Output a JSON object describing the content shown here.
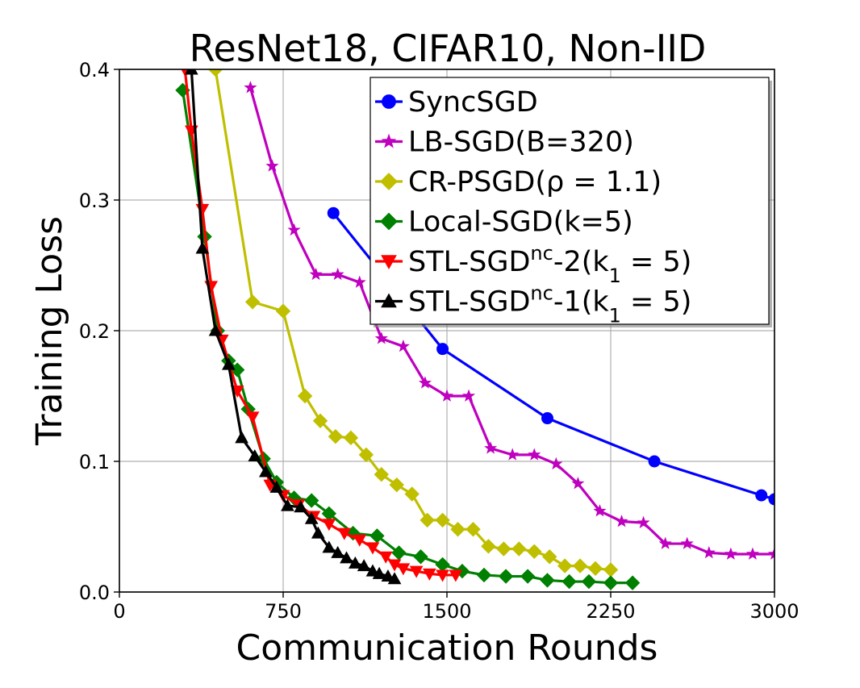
{
  "chart_data": {
    "type": "line",
    "title": "ResNet18, CIFAR10, Non-IID",
    "xlabel": "Communication Rounds",
    "ylabel": "Training Loss",
    "xlim": [
      0,
      3000
    ],
    "ylim": [
      0,
      0.4
    ],
    "x_ticks": [
      0,
      750,
      1500,
      2250,
      3000
    ],
    "y_ticks": [
      0.0,
      0.1,
      0.2,
      0.3,
      0.4
    ],
    "x_tick_labels": [
      "0",
      "750",
      "1500",
      "2250",
      "3000"
    ],
    "y_tick_labels": [
      "0.0",
      "0.1",
      "0.2",
      "0.3",
      "0.4"
    ],
    "grid": true,
    "legend_position": "top-right",
    "series": [
      {
        "name": "SyncSGD",
        "color": "#0000ff",
        "marker": "circle",
        "x": [
          980,
          1480,
          1960,
          2450,
          2940,
          3000
        ],
        "y": [
          0.29,
          0.186,
          0.133,
          0.1,
          0.074,
          0.071
        ]
      },
      {
        "name": "LB-SGD(B=320)",
        "color": "#bf00bf",
        "marker": "star",
        "x": [
          600,
          700,
          800,
          900,
          1000,
          1100,
          1200,
          1300,
          1400,
          1500,
          1600,
          1700,
          1800,
          1900,
          2000,
          2100,
          2200,
          2300,
          2400,
          2500,
          2600,
          2700,
          2800,
          2900,
          3000
        ],
        "y": [
          0.386,
          0.326,
          0.277,
          0.243,
          0.243,
          0.237,
          0.194,
          0.188,
          0.16,
          0.15,
          0.15,
          0.11,
          0.105,
          0.105,
          0.098,
          0.083,
          0.062,
          0.054,
          0.053,
          0.037,
          0.037,
          0.03,
          0.029,
          0.029,
          0.029
        ]
      },
      {
        "name": "CR-PSGD(ρ = 1.1)",
        "color": "#bfbf00",
        "marker": "diamond",
        "x": [
          440,
          610,
          750,
          850,
          920,
          990,
          1060,
          1130,
          1200,
          1270,
          1340,
          1410,
          1480,
          1550,
          1620,
          1690,
          1760,
          1830,
          1900,
          1970,
          2040,
          2110,
          2180,
          2250
        ],
        "y": [
          0.4,
          0.222,
          0.215,
          0.15,
          0.131,
          0.119,
          0.118,
          0.105,
          0.09,
          0.082,
          0.075,
          0.055,
          0.055,
          0.048,
          0.048,
          0.035,
          0.033,
          0.033,
          0.031,
          0.027,
          0.02,
          0.02,
          0.018,
          0.017
        ]
      },
      {
        "name": "Local-SGD(k=5)",
        "color": "#008000",
        "marker": "diamond",
        "x": [
          290,
          390,
          450,
          500,
          540,
          590,
          660,
          720,
          800,
          880,
          960,
          1070,
          1180,
          1280,
          1380,
          1480,
          1570,
          1670,
          1770,
          1870,
          1960,
          2060,
          2150,
          2250,
          2350
        ],
        "y": [
          0.384,
          0.272,
          0.2,
          0.177,
          0.17,
          0.14,
          0.102,
          0.084,
          0.072,
          0.07,
          0.06,
          0.045,
          0.043,
          0.03,
          0.027,
          0.021,
          0.016,
          0.013,
          0.012,
          0.012,
          0.009,
          0.008,
          0.008,
          0.007,
          0.007
        ]
      },
      {
        "name": "STL-SGD^nc-2(k_1 = 5)",
        "color": "#ff0000",
        "marker": "triangle-down",
        "x": [
          300,
          330,
          380,
          420,
          470,
          540,
          610,
          690,
          750,
          820,
          890,
          960,
          1030,
          1100,
          1160,
          1220,
          1260,
          1300,
          1360,
          1420,
          1480,
          1540
        ],
        "y": [
          0.4,
          0.353,
          0.293,
          0.234,
          0.193,
          0.154,
          0.134,
          0.082,
          0.074,
          0.067,
          0.058,
          0.052,
          0.045,
          0.04,
          0.034,
          0.027,
          0.021,
          0.018,
          0.016,
          0.014,
          0.013,
          0.013
        ]
      },
      {
        "name": "STL-SGD^nc-1(k_1 = 5)",
        "color": "#000000",
        "marker": "triangle-up",
        "x": [
          330,
          380,
          440,
          500,
          560,
          620,
          670,
          720,
          770,
          830,
          880,
          910,
          960,
          1000,
          1040,
          1080,
          1120,
          1160,
          1190,
          1230,
          1260
        ],
        "y": [
          0.4,
          0.263,
          0.2,
          0.174,
          0.118,
          0.104,
          0.092,
          0.08,
          0.066,
          0.065,
          0.056,
          0.045,
          0.034,
          0.03,
          0.026,
          0.022,
          0.02,
          0.016,
          0.014,
          0.012,
          0.01
        ]
      }
    ]
  }
}
